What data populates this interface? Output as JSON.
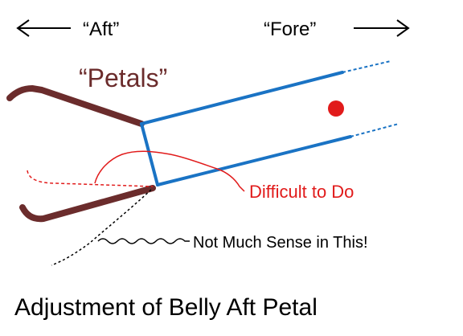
{
  "labels": {
    "aft": "“Aft”",
    "fore": "“Fore”",
    "petals": "“Petals”",
    "difficult": "Difficult to Do",
    "not_much_sense": "Not Much Sense in This!",
    "caption": "Adjustment of Belly Aft Petal"
  },
  "colors": {
    "petal": "#6b2c2c",
    "body_outline": "#1a73c4",
    "red_mark": "#e11b1b",
    "text_default": "#000000"
  },
  "icons": {
    "aft_arrow": "arrow-left-icon",
    "fore_arrow": "arrow-right-icon",
    "target_dot": "red-dot-icon"
  }
}
